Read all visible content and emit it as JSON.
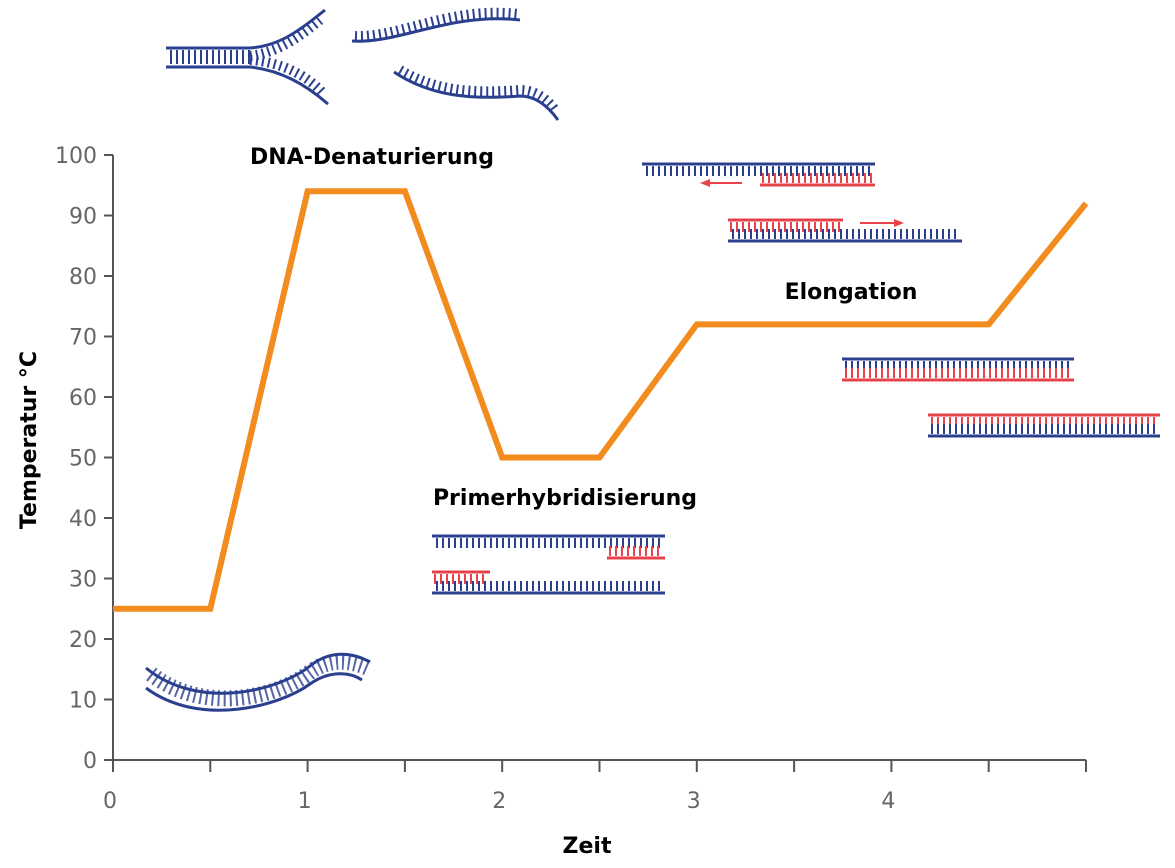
{
  "chart_data": {
    "type": "line",
    "xlabel": "Zeit",
    "ylabel": "Temperatur °C",
    "xlim": [
      0,
      5
    ],
    "ylim": [
      0,
      100
    ],
    "x_ticks": [
      0,
      1,
      2,
      3,
      4
    ],
    "y_ticks": [
      0,
      10,
      20,
      30,
      40,
      50,
      60,
      70,
      80,
      90,
      100
    ],
    "grid": false,
    "series": [
      {
        "color": "#f28c1e",
        "x": [
          0,
          0.5,
          1.0,
          1.5,
          2.0,
          2.5,
          3.0,
          4.5,
          5.0
        ],
        "y": [
          25,
          25,
          94,
          94,
          50,
          50,
          72,
          72,
          92
        ]
      }
    ],
    "annotations": [
      {
        "text": "DNA-Denaturierung"
      },
      {
        "text": "Primerhybridisierung"
      },
      {
        "text": "Elongation"
      }
    ]
  },
  "colors": {
    "line": "#f28c1e",
    "axis": "#555555",
    "dna_blue": "#2b3f8f",
    "primer_red": "#e8434b"
  }
}
